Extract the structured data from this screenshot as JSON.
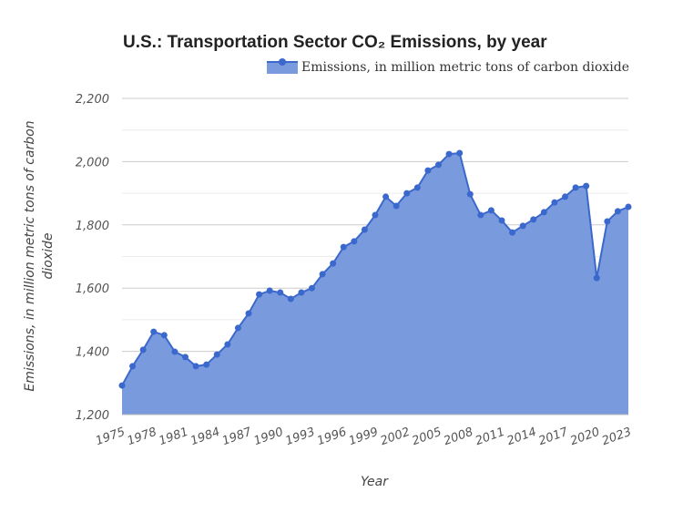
{
  "chart_data": {
    "type": "area",
    "title": "U.S.: Transportation Sector CO₂ Emissions, by year",
    "xlabel": "Year",
    "ylabel": "Emissions, in million metric tons of carbon dioxide",
    "ylim": [
      1200,
      2200
    ],
    "yticks": [
      "1,200",
      "1,400",
      "1,600",
      "1,800",
      "2,000",
      "2,200"
    ],
    "xticks": [
      "1975",
      "1978",
      "1981",
      "1984",
      "1987",
      "1990",
      "1993",
      "1996",
      "1999",
      "2002",
      "2005",
      "2008",
      "2011",
      "2014",
      "2017",
      "2020",
      "2023"
    ],
    "grid": true,
    "legend_position": "top-right",
    "colors": {
      "line": "#3b68cc",
      "fill": "#7a9ade"
    },
    "series": [
      {
        "name": "Emissions, in million metric tons of carbon dioxide",
        "x": [
          1975,
          1976,
          1977,
          1978,
          1979,
          1980,
          1981,
          1982,
          1983,
          1984,
          1985,
          1986,
          1987,
          1988,
          1989,
          1990,
          1991,
          1992,
          1993,
          1994,
          1995,
          1996,
          1997,
          1998,
          1999,
          2000,
          2001,
          2002,
          2003,
          2004,
          2005,
          2006,
          2007,
          2008,
          2009,
          2010,
          2011,
          2012,
          2013,
          2014,
          2015,
          2016,
          2017,
          2018,
          2019,
          2020,
          2021,
          2022,
          2023
        ],
        "values": [
          1292,
          1353,
          1405,
          1462,
          1451,
          1399,
          1382,
          1353,
          1358,
          1390,
          1422,
          1474,
          1520,
          1580,
          1592,
          1586,
          1566,
          1586,
          1600,
          1644,
          1678,
          1730,
          1748,
          1785,
          1831,
          1889,
          1860,
          1900,
          1918,
          1972,
          1990,
          2024,
          2027,
          1897,
          1831,
          1846,
          1814,
          1776,
          1797,
          1817,
          1840,
          1871,
          1889,
          1918,
          1923,
          1632,
          1811,
          1843,
          1857
        ]
      }
    ]
  }
}
